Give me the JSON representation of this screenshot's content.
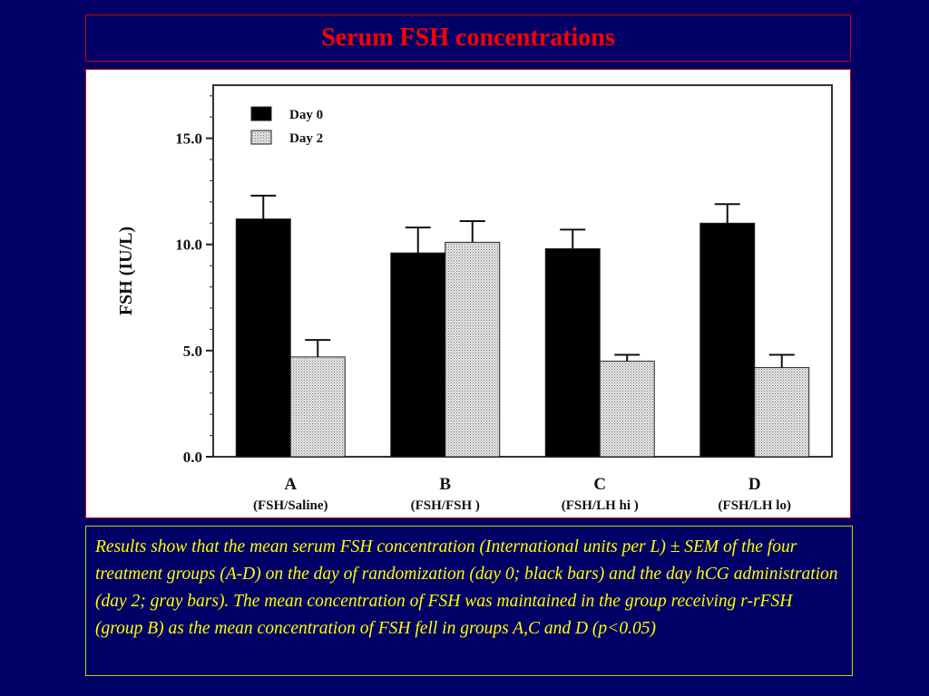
{
  "slide": {
    "title": "Serum FSH concentrations",
    "caption": "Results show that the mean serum FSH concentration (International units per L) ± SEM of the four treatment groups (A-D) on the day of randomization (day 0; black bars) and the day hCG administration (day 2; gray bars). The mean concentration of FSH was maintained in the group receiving r-rFSH (group B) as the mean concentration of FSH fell in groups A,C and D (p<0.05)"
  },
  "colors": {
    "background": "#000066",
    "title": "#ff0000",
    "caption": "#ffff00",
    "day0": "#000000",
    "day2": "#d9d9d9"
  },
  "chart_data": {
    "type": "bar",
    "categories": [
      "A",
      "B",
      "C",
      "D"
    ],
    "category_sublabels": [
      "(FSH/Saline)",
      "(FSH/FSH )",
      "(FSH/LH hi )",
      "(FSH/LH lo)"
    ],
    "series": [
      {
        "name": "Day 0",
        "values": [
          11.2,
          9.6,
          9.8,
          11.0
        ],
        "errors": [
          1.1,
          1.2,
          0.9,
          0.9
        ]
      },
      {
        "name": "Day 2",
        "values": [
          4.7,
          10.1,
          4.5,
          4.2
        ],
        "errors": [
          0.8,
          1.0,
          0.3,
          0.6
        ]
      }
    ],
    "ylabel": "FSH (IU/L)",
    "ylim": [
      0,
      17.5
    ],
    "yticks": [
      0,
      5,
      10,
      15
    ],
    "ytick_labels": [
      "0.0",
      "5.0",
      "10.0",
      "15.0"
    ],
    "legend_position": "top-left",
    "grid": false
  }
}
